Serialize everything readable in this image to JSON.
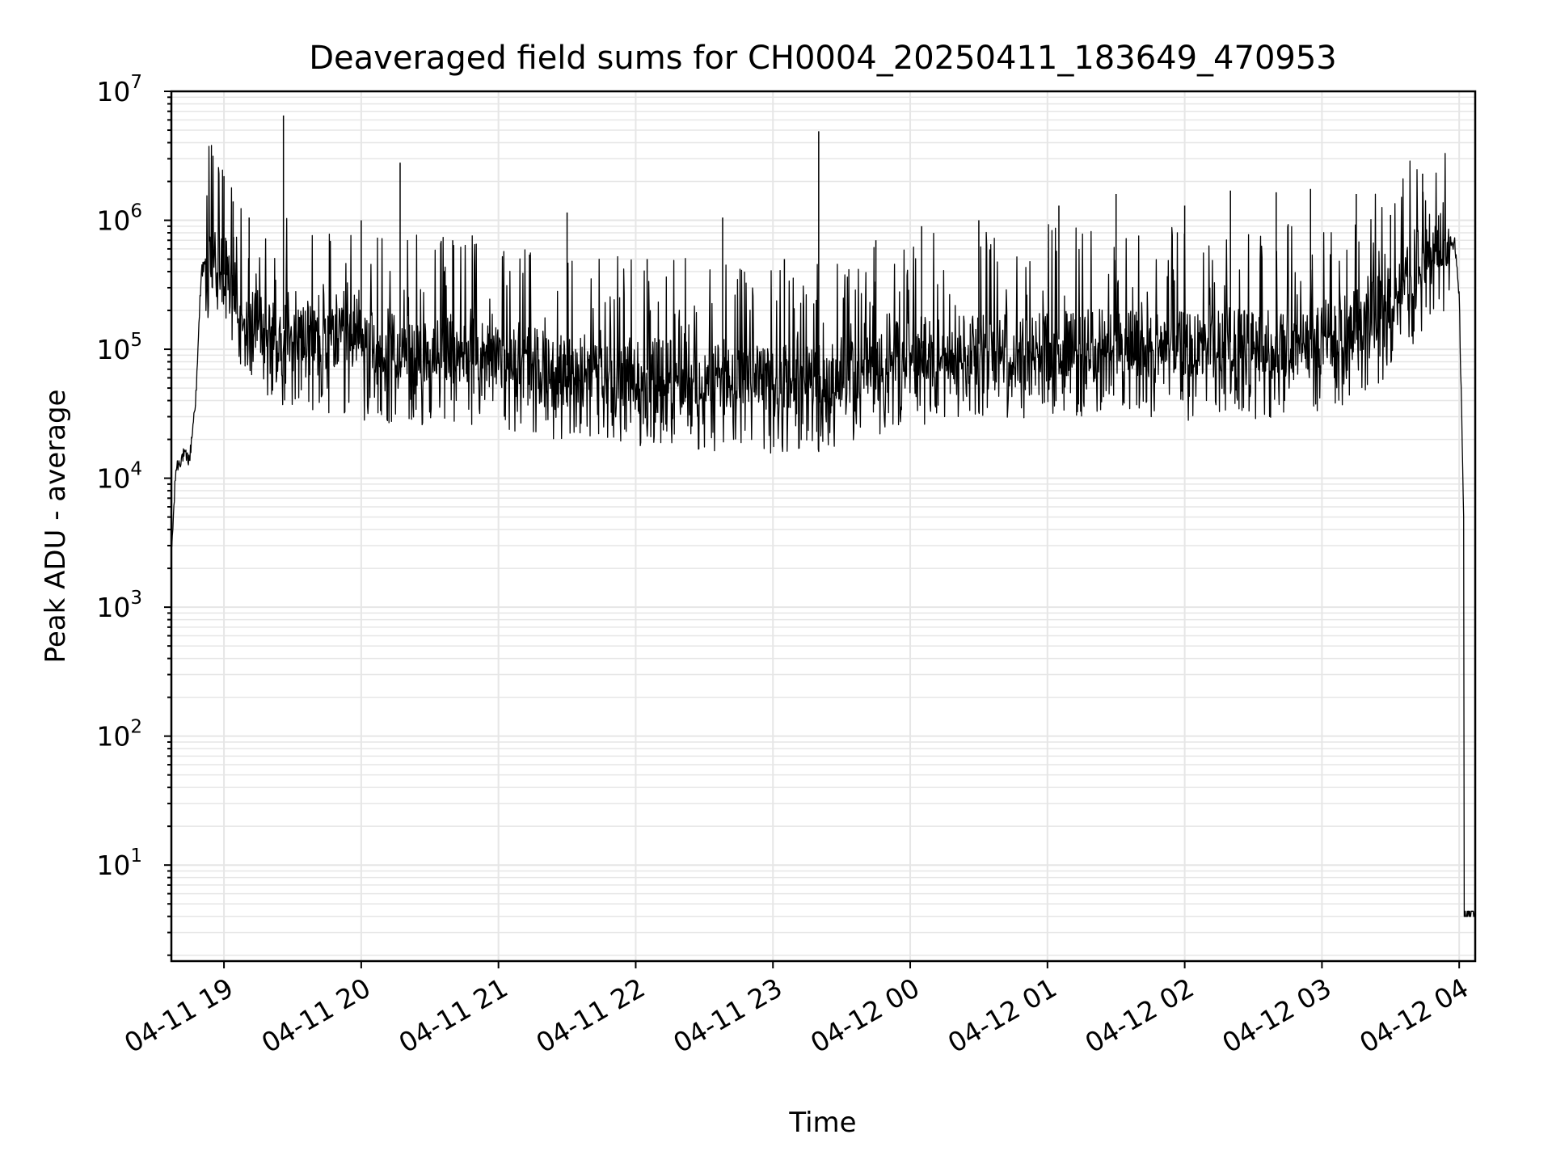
{
  "chart_data": {
    "type": "line",
    "title": "Deaveraged field sums for CH0004_20250411_183649_470953",
    "xlabel": "Time",
    "ylabel": "Peak ADU - average",
    "yscale": "log",
    "ylim": [
      1.8,
      10000000
    ],
    "xlim": [
      "2025-04-11 18:37",
      "2025-04-12 04:07"
    ],
    "x_ticks": [
      "04-11 19",
      "04-11 20",
      "04-11 21",
      "04-11 22",
      "04-11 23",
      "04-12 00",
      "04-12 01",
      "04-12 02",
      "04-12 03",
      "04-12 04"
    ],
    "y_ticks": [
      {
        "base": "10",
        "exp": "1",
        "value": 10
      },
      {
        "base": "10",
        "exp": "2",
        "value": 100
      },
      {
        "base": "10",
        "exp": "3",
        "value": 1000
      },
      {
        "base": "10",
        "exp": "4",
        "value": 10000
      },
      {
        "base": "10",
        "exp": "5",
        "value": 100000
      },
      {
        "base": "10",
        "exp": "6",
        "value": 1000000
      },
      {
        "base": "10",
        "exp": "7",
        "value": 10000000
      }
    ],
    "grid": true,
    "line_color": "#000000",
    "grid_color": "#e6e6e6",
    "series": [
      {
        "x": [
          "2025-04-11 18:37",
          "2025-04-11 18:39",
          "2025-04-11 18:42",
          "2025-04-11 18:45",
          "2025-04-11 18:48",
          "2025-04-11 18:50",
          "2025-04-11 18:53",
          "2025-04-11 18:57",
          "2025-04-11 19:00",
          "2025-04-11 19:10",
          "2025-04-11 19:20",
          "2025-04-11 19:40",
          "2025-04-11 20:00",
          "2025-04-11 20:30",
          "2025-04-11 21:00",
          "2025-04-11 21:30",
          "2025-04-11 22:00",
          "2025-04-11 22:30",
          "2025-04-11 23:00",
          "2025-04-11 23:30",
          "2025-04-12 00:00",
          "2025-04-12 00:30",
          "2025-04-12 01:00",
          "2025-04-12 01:30",
          "2025-04-12 02:00",
          "2025-04-12 02:30",
          "2025-04-12 03:00",
          "2025-04-12 03:20",
          "2025-04-12 03:35",
          "2025-04-12 03:42",
          "2025-04-12 03:50",
          "2025-04-12 03:55",
          "2025-04-12 03:58",
          "2025-04-12 04:00",
          "2025-04-12 04:02",
          "2025-04-12 04:07"
        ],
        "y": [
          2500,
          12000,
          15000,
          14000,
          50000,
          400000,
          480000,
          520000,
          380000,
          180000,
          150000,
          130000,
          110000,
          100000,
          95000,
          75000,
          70000,
          65000,
          60000,
          65000,
          100000,
          110000,
          120000,
          115000,
          110000,
          115000,
          120000,
          180000,
          300000,
          500000,
          750000,
          800000,
          650000,
          250000,
          5000,
          4
        ]
      }
    ],
    "spikes": [
      {
        "x": "2025-04-11 19:00",
        "y": 2200000
      },
      {
        "x": "2025-04-11 19:04",
        "y": 1400000
      },
      {
        "x": "2025-04-11 19:11",
        "y": 1050000
      },
      {
        "x": "2025-04-11 19:26",
        "y": 6500000
      },
      {
        "x": "2025-04-11 20:00",
        "y": 1000000
      },
      {
        "x": "2025-04-11 20:17",
        "y": 2800000
      },
      {
        "x": "2025-04-11 20:40",
        "y": 700000
      },
      {
        "x": "2025-04-11 21:30",
        "y": 1150000
      },
      {
        "x": "2025-04-11 22:05",
        "y": 500000
      },
      {
        "x": "2025-04-11 22:38",
        "y": 1050000
      },
      {
        "x": "2025-04-11 23:05",
        "y": 500000
      },
      {
        "x": "2025-04-11 23:20",
        "y": 4900000
      },
      {
        "x": "2025-04-11 23:45",
        "y": 700000
      },
      {
        "x": "2025-04-12 00:05",
        "y": 900000
      },
      {
        "x": "2025-04-12 00:30",
        "y": 1000000
      },
      {
        "x": "2025-04-12 01:05",
        "y": 1300000
      },
      {
        "x": "2025-04-12 01:30",
        "y": 1600000
      },
      {
        "x": "2025-04-12 02:00",
        "y": 1300000
      },
      {
        "x": "2025-04-12 02:20",
        "y": 1700000
      },
      {
        "x": "2025-04-12 02:40",
        "y": 1650000
      },
      {
        "x": "2025-04-12 02:55",
        "y": 1750000
      },
      {
        "x": "2025-04-12 03:15",
        "y": 1600000
      },
      {
        "x": "2025-04-12 03:30",
        "y": 1100000
      },
      {
        "x": "2025-04-12 03:44",
        "y": 2300000
      }
    ]
  }
}
